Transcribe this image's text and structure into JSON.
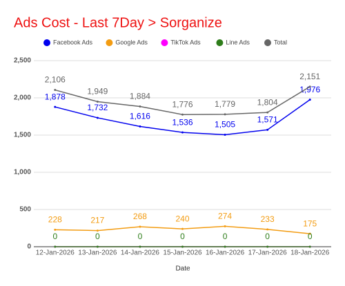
{
  "chart_data": {
    "type": "line",
    "title": "Ads Cost - Last 7Day > Sorganize",
    "x_label": "Date",
    "categories": [
      "12-Jan-2026",
      "13-Jan-2026",
      "14-Jan-2026",
      "15-Jan-2026",
      "16-Jan-2026",
      "17-Jan-2026",
      "18-Jan-2026"
    ],
    "series": [
      {
        "name": "Facebook Ads",
        "color": "#0000ee",
        "values": [
          1878,
          1732,
          1616,
          1536,
          1505,
          1571,
          1976
        ],
        "value_labels": [
          "1,878",
          "1,732",
          "1,616",
          "1,536",
          "1,505",
          "1,571",
          "1,976"
        ],
        "data_labels": true
      },
      {
        "name": "Google Ads",
        "color": "#f39c12",
        "values": [
          228,
          217,
          268,
          240,
          274,
          233,
          175
        ],
        "data_labels": true
      },
      {
        "name": "TikTok Ads",
        "color": "#ff00ff",
        "values": [
          0,
          0,
          0,
          0,
          0,
          0,
          0
        ],
        "data_labels": false
      },
      {
        "name": "Line Ads",
        "color": "#2e7d1a",
        "values": [
          0,
          0,
          0,
          0,
          0,
          0,
          0
        ],
        "data_labels": true
      },
      {
        "name": "Total",
        "color": "#666666",
        "values": [
          2106,
          1949,
          1884,
          1776,
          1779,
          1804,
          2151
        ],
        "value_labels": [
          "2,106",
          "1,949",
          "1,884",
          "1,776",
          "1,779",
          "1,804",
          "2,151"
        ],
        "data_labels": true
      }
    ],
    "ylim": [
      0,
      2500
    ],
    "yticks": [
      0,
      500,
      {
        "value": 1000,
        "label": "1,000"
      },
      {
        "value": 1500,
        "label": "1,500"
      },
      {
        "value": 2000,
        "label": "2,000"
      },
      {
        "value": 2500,
        "label": "2,500"
      }
    ],
    "grid": true
  }
}
